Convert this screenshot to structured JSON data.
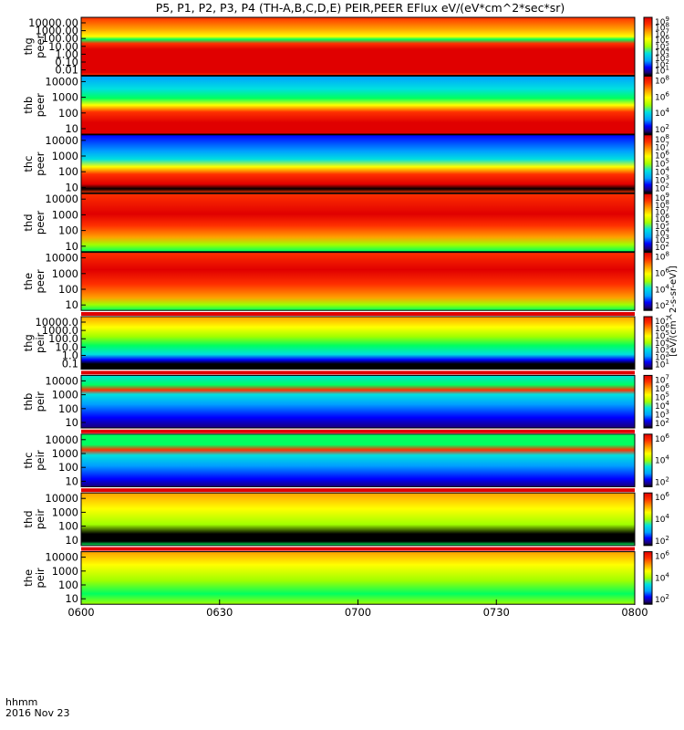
{
  "chart_data": {
    "type": "heatmap",
    "title": "P5, P1, P2, P3, P4 (TH-A,B,C,D,E) PEIR,PEER EFlux eV/(eV*cm^2*sec*sr)",
    "xlabel_line1": "hhmm",
    "xlabel_line2": "2016 Nov 23",
    "x_ticks": [
      "0600",
      "0630",
      "0700",
      "0730",
      "0800"
    ],
    "x_range": [
      "0600",
      "0800"
    ],
    "colorbar_label": "[eV/(cm^2-s-sr-eV)]",
    "colorbar_tick_prefix": "10",
    "panels": [
      {
        "ylabel_line1": "thg",
        "ylabel_line2": "peer",
        "y_ticks": [
          "10000.00",
          "1000.00",
          "100.00",
          "10.00",
          "1.00",
          "0.10",
          "0.01"
        ],
        "colorbar_exps": [
          "9",
          "8",
          "7",
          "6",
          "5",
          "4",
          "3",
          "2",
          "1"
        ]
      },
      {
        "ylabel_line1": "thb",
        "ylabel_line2": "peer",
        "y_ticks": [
          "10000",
          "1000",
          "100",
          "10"
        ],
        "colorbar_exps": [
          "8",
          "6",
          "4",
          "2"
        ]
      },
      {
        "ylabel_line1": "thc",
        "ylabel_line2": "peer",
        "y_ticks": [
          "10000",
          "1000",
          "100",
          "10"
        ],
        "colorbar_exps": [
          "8",
          "7",
          "6",
          "5",
          "4",
          "3",
          "2"
        ]
      },
      {
        "ylabel_line1": "thd",
        "ylabel_line2": "peer",
        "y_ticks": [
          "10000",
          "1000",
          "100",
          "10"
        ],
        "colorbar_exps": [
          "9",
          "8",
          "7",
          "6",
          "5",
          "4",
          "3",
          "2"
        ]
      },
      {
        "ylabel_line1": "the",
        "ylabel_line2": "peer",
        "y_ticks": [
          "10000",
          "1000",
          "100",
          "10"
        ],
        "colorbar_exps": [
          "8",
          "6",
          "4",
          "2"
        ]
      },
      {
        "ylabel_line1": "thg",
        "ylabel_line2": "peir",
        "y_ticks": [
          "10000.0",
          "1000.0",
          "100.0",
          "10.0",
          "1.0",
          "0.1"
        ],
        "colorbar_exps": [
          "7",
          "6",
          "5",
          "4",
          "3",
          "2",
          "1"
        ]
      },
      {
        "ylabel_line1": "thb",
        "ylabel_line2": "peir",
        "y_ticks": [
          "10000",
          "1000",
          "100",
          "10"
        ],
        "colorbar_exps": [
          "7",
          "6",
          "5",
          "4",
          "3",
          "2"
        ]
      },
      {
        "ylabel_line1": "thc",
        "ylabel_line2": "peir",
        "y_ticks": [
          "10000",
          "1000",
          "100",
          "10"
        ],
        "colorbar_exps": [
          "6",
          "4",
          "2"
        ]
      },
      {
        "ylabel_line1": "thd",
        "ylabel_line2": "peir",
        "y_ticks": [
          "10000",
          "1000",
          "100",
          "10"
        ],
        "colorbar_exps": [
          "6",
          "4",
          "2"
        ]
      },
      {
        "ylabel_line1": "the",
        "ylabel_line2": "peir",
        "y_ticks": [
          "10000",
          "1000",
          "100",
          "10"
        ],
        "colorbar_exps": [
          "6",
          "4",
          "2"
        ]
      }
    ],
    "colorscale": [
      "#000000",
      "#1a0078",
      "#0000ff",
      "#00a0ff",
      "#00e0e0",
      "#00ff60",
      "#a0ff00",
      "#ffff00",
      "#ffa000",
      "#ff3000",
      "#e00000"
    ]
  }
}
